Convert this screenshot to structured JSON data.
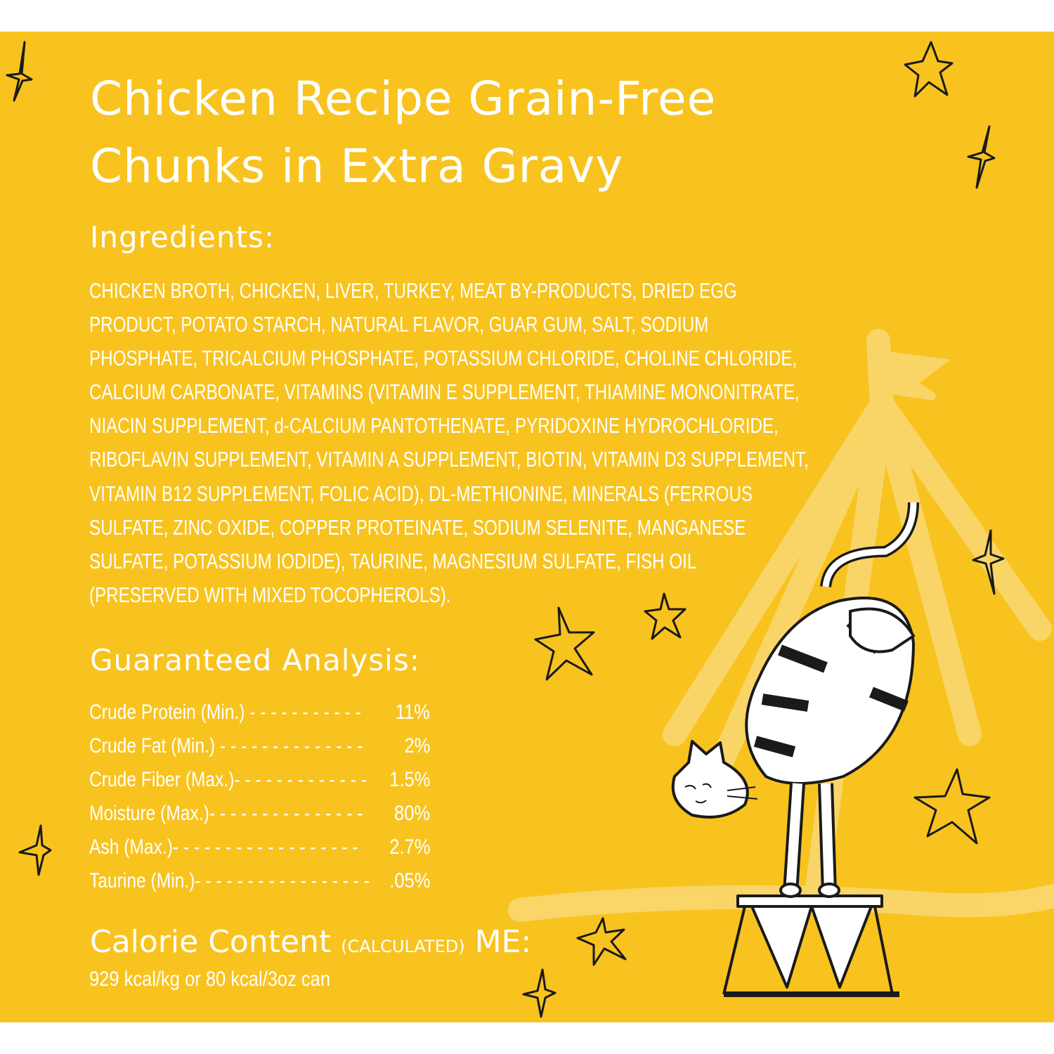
{
  "title": {
    "line1": "Chicken Recipe Grain-Free",
    "line2": "Chunks in Extra Gravy"
  },
  "ingredients": {
    "heading": "Ingredients:",
    "lines": [
      "CHICKEN BROTH, CHICKEN, LIVER, TURKEY, MEAT BY-PRODUCTS, DRIED EGG",
      "PRODUCT, POTATO STARCH, NATURAL FLAVOR, GUAR GUM, SALT, SODIUM",
      "PHOSPHATE, TRICALCIUM PHOSPHATE, POTASSIUM CHLORIDE, CHOLINE CHLORIDE,",
      "CALCIUM CARBONATE, VITAMINS (VITAMIN E SUPPLEMENT, THIAMINE MONONITRATE,",
      "NIACIN SUPPLEMENT, d-CALCIUM PANTOTHENATE, PYRIDOXINE HYDROCHLORIDE,",
      "RIBOFLAVIN SUPPLEMENT, VITAMIN A SUPPLEMENT, BIOTIN, VITAMIN D3 SUPPLEMENT,",
      "VITAMIN B12 SUPPLEMENT, FOLIC ACID), DL-METHIONINE, MINERALS (FERROUS",
      "SULFATE, ZINC OXIDE, COPPER PROTEINATE, SODIUM SELENITE, MANGANESE",
      "SULFATE, POTASSIUM IODIDE), TAURINE, MAGNESIUM SULFATE, FISH OIL",
      "(PRESERVED WITH MIXED TOCOPHEROLS)."
    ]
  },
  "guaranteed_analysis": {
    "heading": "Guaranteed Analysis:",
    "rows": [
      {
        "label": "Crude Protein (Min.)",
        "dots": "- - - - - - - - - - -",
        "value": "11%"
      },
      {
        "label": "Crude Fat (Min.)",
        "dots": "- - - - - - - - - - - - - -",
        "value": "2%"
      },
      {
        "label": "Crude Fiber (Max.)",
        "dots": "- - - - - - - - - - - - -",
        "value": "1.5%"
      },
      {
        "label": "Moisture (Max.)",
        "dots": "- - - - - - - - - - - - - - -",
        "value": "80%"
      },
      {
        "label": "Ash (Max.)",
        "dots": "- - - - - - - - - - - - - - - - - -",
        "value": "2.7%"
      },
      {
        "label": "Taurine (Min.)",
        "dots": "- - - - - - - - - - - - - - - - -",
        "value": ".05%"
      }
    ]
  },
  "calorie": {
    "heading": "Calorie Content",
    "qualifier": "(CALCULATED)",
    "suffix": "ME:",
    "value": "929 kcal/kg or 80 kcal/3oz can"
  },
  "colors": {
    "background": "#F8C31F",
    "text": "#FFFFFF",
    "ink": "#1A1A1A"
  },
  "icons": [
    "sparkle-icon",
    "star-icon",
    "circus-tent-illustration",
    "cat-on-pedestal-illustration"
  ]
}
